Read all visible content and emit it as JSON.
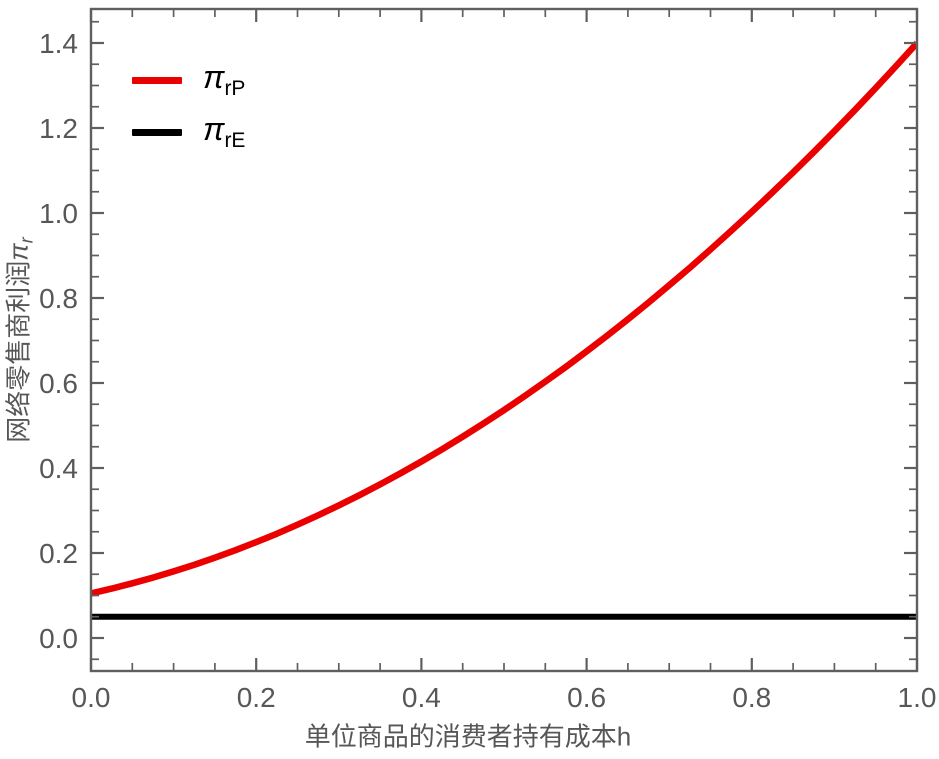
{
  "figure": {
    "background": "#ffffff",
    "frame_color": "#5f5f5f",
    "tick_color": "#5f5f5f",
    "text_color": "#575757"
  },
  "legend": {
    "items": [
      {
        "symbol": "π",
        "subscript": "rP",
        "color": "#eb0000"
      },
      {
        "symbol": "π",
        "subscript": "rE",
        "color": "#000000"
      }
    ]
  },
  "chart_data": {
    "type": "line",
    "title": "",
    "xlabel": "单位商品的消费者持有成本h",
    "ylabel": "网络零售商利润πr",
    "ylabel_parts": {
      "prefix": "网络零售商利润",
      "symbol": "π",
      "subscript": "r"
    },
    "xlim": [
      0.0,
      1.0
    ],
    "ylim": [
      -0.08,
      1.48
    ],
    "grid": false,
    "frame": true,
    "legend_position": "top-left-inside",
    "x_major_ticks": [
      0.0,
      0.2,
      0.4,
      0.6,
      0.8,
      1.0
    ],
    "x_major_tick_labels": [
      "0.0",
      "0.2",
      "0.4",
      "0.6",
      "0.8",
      "1.0"
    ],
    "x_minor_ticks": [
      0.05,
      0.1,
      0.15,
      0.25,
      0.3,
      0.35,
      0.45,
      0.5,
      0.55,
      0.65,
      0.7,
      0.75,
      0.85,
      0.9,
      0.95
    ],
    "y_major_ticks": [
      0.0,
      0.2,
      0.4,
      0.6,
      0.8,
      1.0,
      1.2,
      1.4
    ],
    "y_major_tick_labels": [
      "0.0",
      "0.2",
      "0.4",
      "0.6",
      "0.8",
      "1.0",
      "1.2",
      "1.4"
    ],
    "y_minor_ticks": [
      -0.05,
      0.05,
      0.1,
      0.15,
      0.25,
      0.3,
      0.35,
      0.45,
      0.5,
      0.55,
      0.65,
      0.7,
      0.75,
      0.85,
      0.9,
      0.95,
      1.05,
      1.1,
      1.15,
      1.25,
      1.3,
      1.35,
      1.45
    ],
    "series": [
      {
        "name": "πrP",
        "legend_symbol": "π",
        "legend_subscript": "rP",
        "color": "#eb0000",
        "line_width": 6.5,
        "x": [
          0,
          0.025,
          0.05,
          0.075,
          0.1,
          0.125,
          0.15,
          0.175,
          0.2,
          0.225,
          0.25,
          0.275,
          0.3,
          0.325,
          0.35,
          0.375,
          0.4,
          0.425,
          0.45,
          0.475,
          0.5,
          0.525,
          0.55,
          0.575,
          0.6,
          0.625,
          0.65,
          0.675,
          0.7,
          0.725,
          0.75,
          0.775,
          0.8,
          0.825,
          0.85,
          0.875,
          0.9,
          0.925,
          0.95,
          0.975,
          1.0
        ],
        "y": [
          0.105,
          0.1163,
          0.1287,
          0.1421,
          0.1567,
          0.1723,
          0.189,
          0.2067,
          0.2256,
          0.2455,
          0.2666,
          0.2887,
          0.3119,
          0.3361,
          0.3615,
          0.3879,
          0.4154,
          0.444,
          0.4737,
          0.5044,
          0.5363,
          0.5692,
          0.6032,
          0.6382,
          0.6744,
          0.7116,
          0.75,
          0.7894,
          0.8299,
          0.8714,
          0.9141,
          0.9578,
          1.0026,
          1.0485,
          1.0955,
          1.1435,
          1.1927,
          1.2429,
          1.2942,
          1.3465,
          1.4
        ]
      },
      {
        "name": "πrE",
        "legend_symbol": "π",
        "legend_subscript": "rE",
        "color": "#000000",
        "line_width": 6,
        "x": [
          0.0,
          1.0
        ],
        "y": [
          0.05,
          0.05
        ]
      }
    ]
  }
}
